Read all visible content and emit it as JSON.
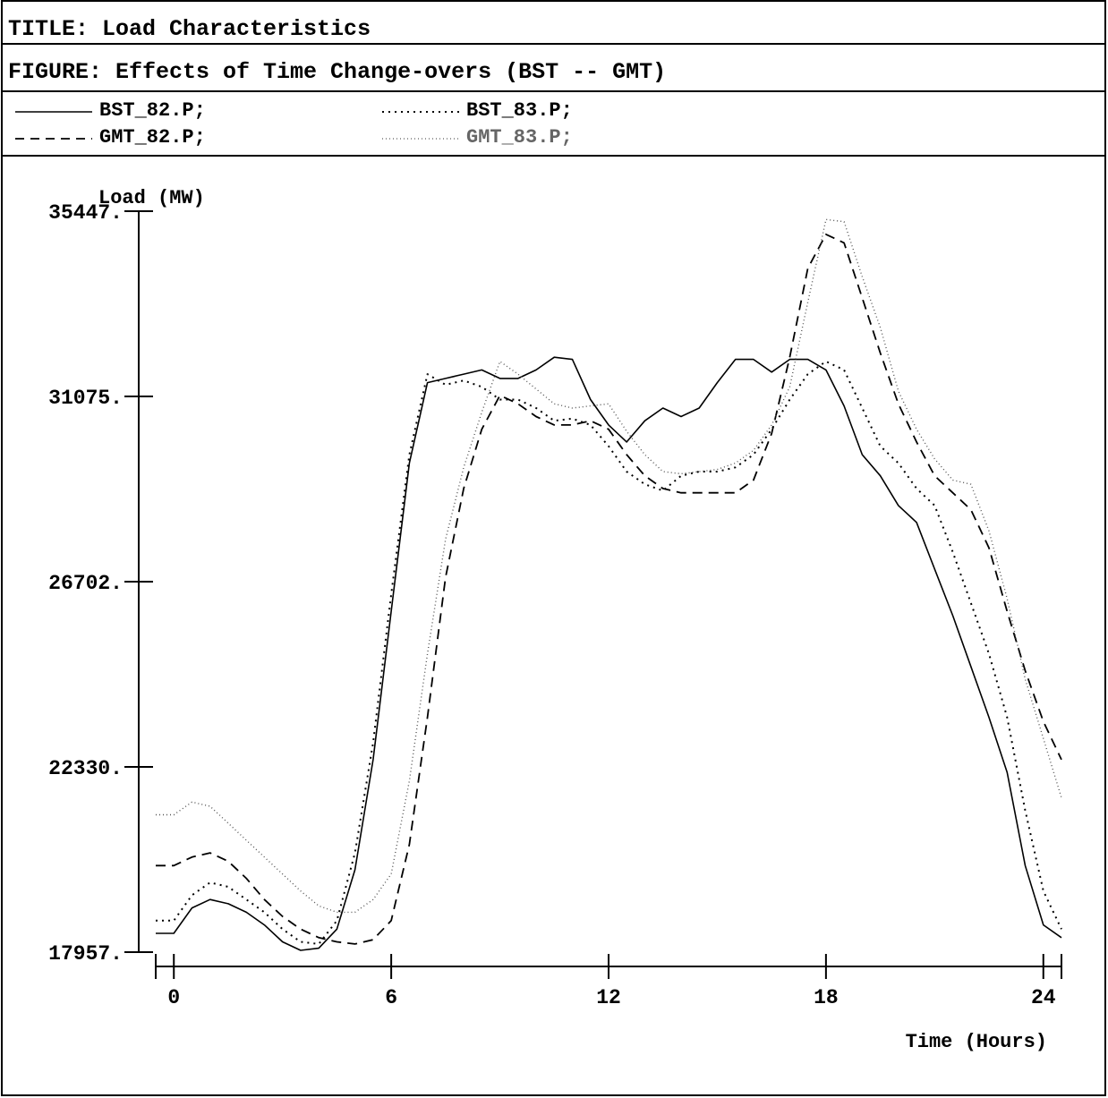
{
  "header": {
    "title": "TITLE: Load Characteristics",
    "figure": "FIGURE: Effects of Time Change-overs (BST -- GMT)"
  },
  "legend": [
    {
      "label": "BST_82.P;",
      "style": "solid"
    },
    {
      "label": "BST_83.P;",
      "style": "dotted"
    },
    {
      "label": "GMT_82.P;",
      "style": "dashed"
    },
    {
      "label": "GMT_83.P;",
      "style": "fine-dotted"
    }
  ],
  "chart_data": {
    "type": "line",
    "ylabel": "Load (MW)",
    "xlabel": "Time (Hours)",
    "xlim": [
      -0.5,
      24.5
    ],
    "ylim": [
      17957,
      35447
    ],
    "x_ticks": [
      0,
      6,
      12,
      18,
      24
    ],
    "y_ticks": [
      "17957.",
      "22330.",
      "26702.",
      "31075.",
      "35447."
    ],
    "y_tick_values": [
      17957,
      22330,
      26702,
      31075,
      35447
    ],
    "grid": false,
    "x": [
      -0.5,
      0,
      0.5,
      1,
      1.5,
      2,
      2.5,
      3,
      3.5,
      4,
      4.5,
      5,
      5.5,
      6,
      6.5,
      7,
      7.5,
      8,
      8.5,
      9,
      9.5,
      10,
      10.5,
      11,
      11.5,
      12,
      12.5,
      13,
      13.5,
      14,
      14.5,
      15,
      15.5,
      16,
      16.5,
      17,
      17.5,
      18,
      18.5,
      19,
      19.5,
      20,
      20.5,
      21,
      21.5,
      22,
      22.5,
      23,
      23.5,
      24,
      24.5
    ],
    "series": [
      {
        "name": "BST_82.P;",
        "color": "#000000",
        "dash": "solid",
        "values": [
          18400,
          18400,
          19000,
          19200,
          19100,
          18900,
          18600,
          18200,
          18000,
          18050,
          18500,
          19900,
          22500,
          26000,
          29500,
          31400,
          31500,
          31600,
          31700,
          31500,
          31500,
          31700,
          32000,
          31950,
          31000,
          30400,
          30000,
          30500,
          30800,
          30600,
          30800,
          31400,
          31950,
          31950,
          31650,
          31950,
          31950,
          31700,
          30850,
          29700,
          29200,
          28500,
          28100,
          27000,
          25900,
          24700,
          23500,
          22200,
          20000,
          18600,
          18300
        ]
      },
      {
        "name": "BST_83.P;",
        "color": "#000000",
        "dash": "dotted",
        "values": [
          18700,
          18700,
          19300,
          19600,
          19500,
          19200,
          18900,
          18500,
          18200,
          18150,
          18700,
          20300,
          22900,
          26400,
          29700,
          31600,
          31350,
          31450,
          31300,
          31000,
          31000,
          30800,
          30500,
          30550,
          30400,
          29900,
          29300,
          29000,
          28850,
          29200,
          29300,
          29300,
          29400,
          29700,
          30300,
          31000,
          31600,
          31900,
          31700,
          30800,
          29900,
          29500,
          28900,
          28500,
          27400,
          26200,
          25000,
          23500,
          21300,
          19400,
          18500
        ]
      },
      {
        "name": "GMT_82.P;",
        "color": "#000000",
        "dash": "dashed",
        "values": [
          20000,
          20000,
          20200,
          20300,
          20100,
          19700,
          19200,
          18800,
          18500,
          18300,
          18200,
          18150,
          18250,
          18700,
          20500,
          23500,
          26800,
          28900,
          30300,
          31100,
          30900,
          30600,
          30400,
          30400,
          30500,
          30300,
          29700,
          29200,
          28900,
          28800,
          28800,
          28800,
          28800,
          29100,
          30200,
          32000,
          34100,
          34900,
          34700,
          33400,
          32100,
          30900,
          30000,
          29200,
          28800,
          28400,
          27500,
          26000,
          24600,
          23400,
          22500
        ]
      },
      {
        "name": "GMT_83.P;",
        "color": "#000000",
        "dash": "fine-dotted",
        "values": [
          21200,
          21200,
          21500,
          21400,
          21000,
          20600,
          20200,
          19800,
          19400,
          19050,
          18900,
          18900,
          19200,
          19800,
          22000,
          25000,
          27700,
          29400,
          30700,
          31900,
          31600,
          31250,
          30900,
          30800,
          30850,
          30900,
          30250,
          29700,
          29300,
          29250,
          29300,
          29350,
          29500,
          29800,
          30400,
          31300,
          33300,
          35250,
          35200,
          33900,
          32700,
          31200,
          30300,
          29600,
          29100,
          29000,
          27900,
          26300,
          24400,
          23000,
          21600
        ]
      }
    ]
  }
}
